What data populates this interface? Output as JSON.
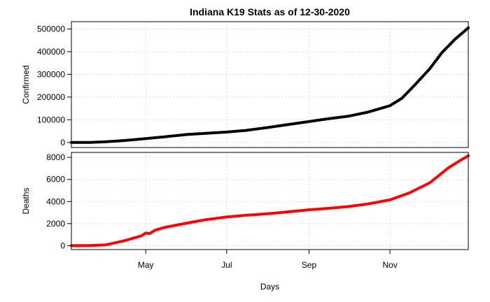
{
  "chart_data": {
    "type": "line",
    "title": "Indiana K19 Stats as of 12-30-2020",
    "xlabel": "Days",
    "x_tick_labels": [
      "May",
      "Jul",
      "Sep",
      "Nov"
    ],
    "x_tick_dates": [
      "2020-05-01",
      "2020-07-01",
      "2020-09-01",
      "2020-11-01"
    ],
    "xlim": [
      "2020-03-06",
      "2020-12-30"
    ],
    "grid": true,
    "panels": [
      {
        "ylabel": "Confirmed",
        "ylim": [
          0,
          510000
        ],
        "y_ticks": [
          0,
          100000,
          200000,
          300000,
          400000,
          500000
        ],
        "series": [
          {
            "color": "#000000",
            "points": [
              [
                "2020-03-06",
                0
              ],
              [
                "2020-03-20",
                200
              ],
              [
                "2020-04-01",
                3000
              ],
              [
                "2020-04-15",
                8500
              ],
              [
                "2020-05-01",
                17000
              ],
              [
                "2020-05-15",
                25000
              ],
              [
                "2020-06-01",
                35000
              ],
              [
                "2020-06-15",
                40000
              ],
              [
                "2020-07-01",
                46000
              ],
              [
                "2020-07-15",
                53000
              ],
              [
                "2020-08-01",
                66000
              ],
              [
                "2020-08-15",
                78000
              ],
              [
                "2020-09-01",
                92000
              ],
              [
                "2020-09-15",
                104000
              ],
              [
                "2020-10-01",
                116000
              ],
              [
                "2020-10-15",
                133000
              ],
              [
                "2020-11-01",
                162000
              ],
              [
                "2020-11-10",
                195000
              ],
              [
                "2020-11-20",
                255000
              ],
              [
                "2020-12-01",
                325000
              ],
              [
                "2020-12-10",
                395000
              ],
              [
                "2020-12-20",
                455000
              ],
              [
                "2020-12-30",
                505000
              ]
            ]
          }
        ]
      },
      {
        "ylabel": "Deaths",
        "ylim": [
          0,
          8100
        ],
        "y_ticks": [
          0,
          2000,
          4000,
          6000,
          8000
        ],
        "series": [
          {
            "color": "#ff0000",
            "points": [
              [
                "2020-03-06",
                0
              ],
              [
                "2020-03-20",
                10
              ],
              [
                "2020-04-01",
                80
              ],
              [
                "2020-04-15",
                450
              ],
              [
                "2020-04-28",
                900
              ],
              [
                "2020-05-01",
                1150
              ],
              [
                "2020-05-04",
                1100
              ],
              [
                "2020-05-08",
                1400
              ],
              [
                "2020-05-15",
                1650
              ],
              [
                "2020-06-01",
                2050
              ],
              [
                "2020-06-15",
                2350
              ],
              [
                "2020-07-01",
                2600
              ],
              [
                "2020-07-15",
                2750
              ],
              [
                "2020-08-01",
                2900
              ],
              [
                "2020-08-15",
                3050
              ],
              [
                "2020-09-01",
                3250
              ],
              [
                "2020-09-15",
                3380
              ],
              [
                "2020-10-01",
                3550
              ],
              [
                "2020-10-15",
                3780
              ],
              [
                "2020-11-01",
                4150
              ],
              [
                "2020-11-15",
                4750
              ],
              [
                "2020-12-01",
                5700
              ],
              [
                "2020-12-15",
                7050
              ],
              [
                "2020-12-25",
                7800
              ],
              [
                "2020-12-30",
                8150
              ]
            ]
          }
        ]
      }
    ]
  }
}
